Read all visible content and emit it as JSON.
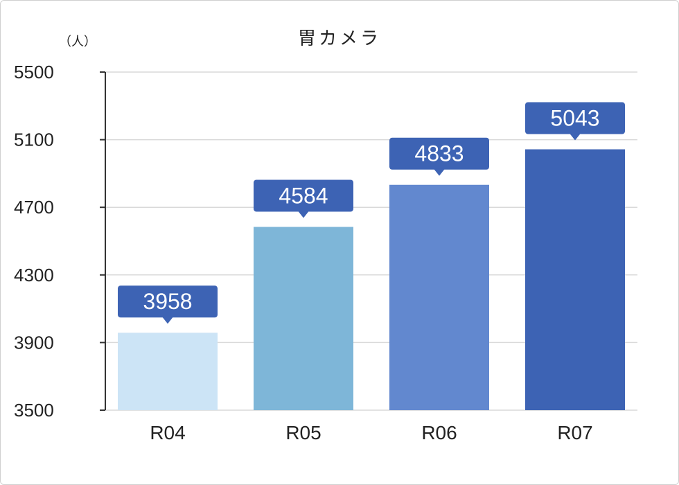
{
  "chart_data": {
    "type": "bar",
    "title": "胃カメラ",
    "unit_label": "（人）",
    "categories": [
      "R04",
      "R05",
      "R06",
      "R07"
    ],
    "values": [
      3958,
      4584,
      4833,
      5043
    ],
    "ylim": [
      3500,
      5500
    ],
    "yticks": [
      3500,
      3900,
      4300,
      4700,
      5100,
      5500
    ],
    "grid": true,
    "legend": "none",
    "bar_colors": [
      "#cce4f6",
      "#7eb6d8",
      "#6288cf",
      "#3d63b4"
    ],
    "label_box_color": "#3d63b4",
    "grid_color": "#d9d9d9",
    "axis_color": "#333333"
  }
}
